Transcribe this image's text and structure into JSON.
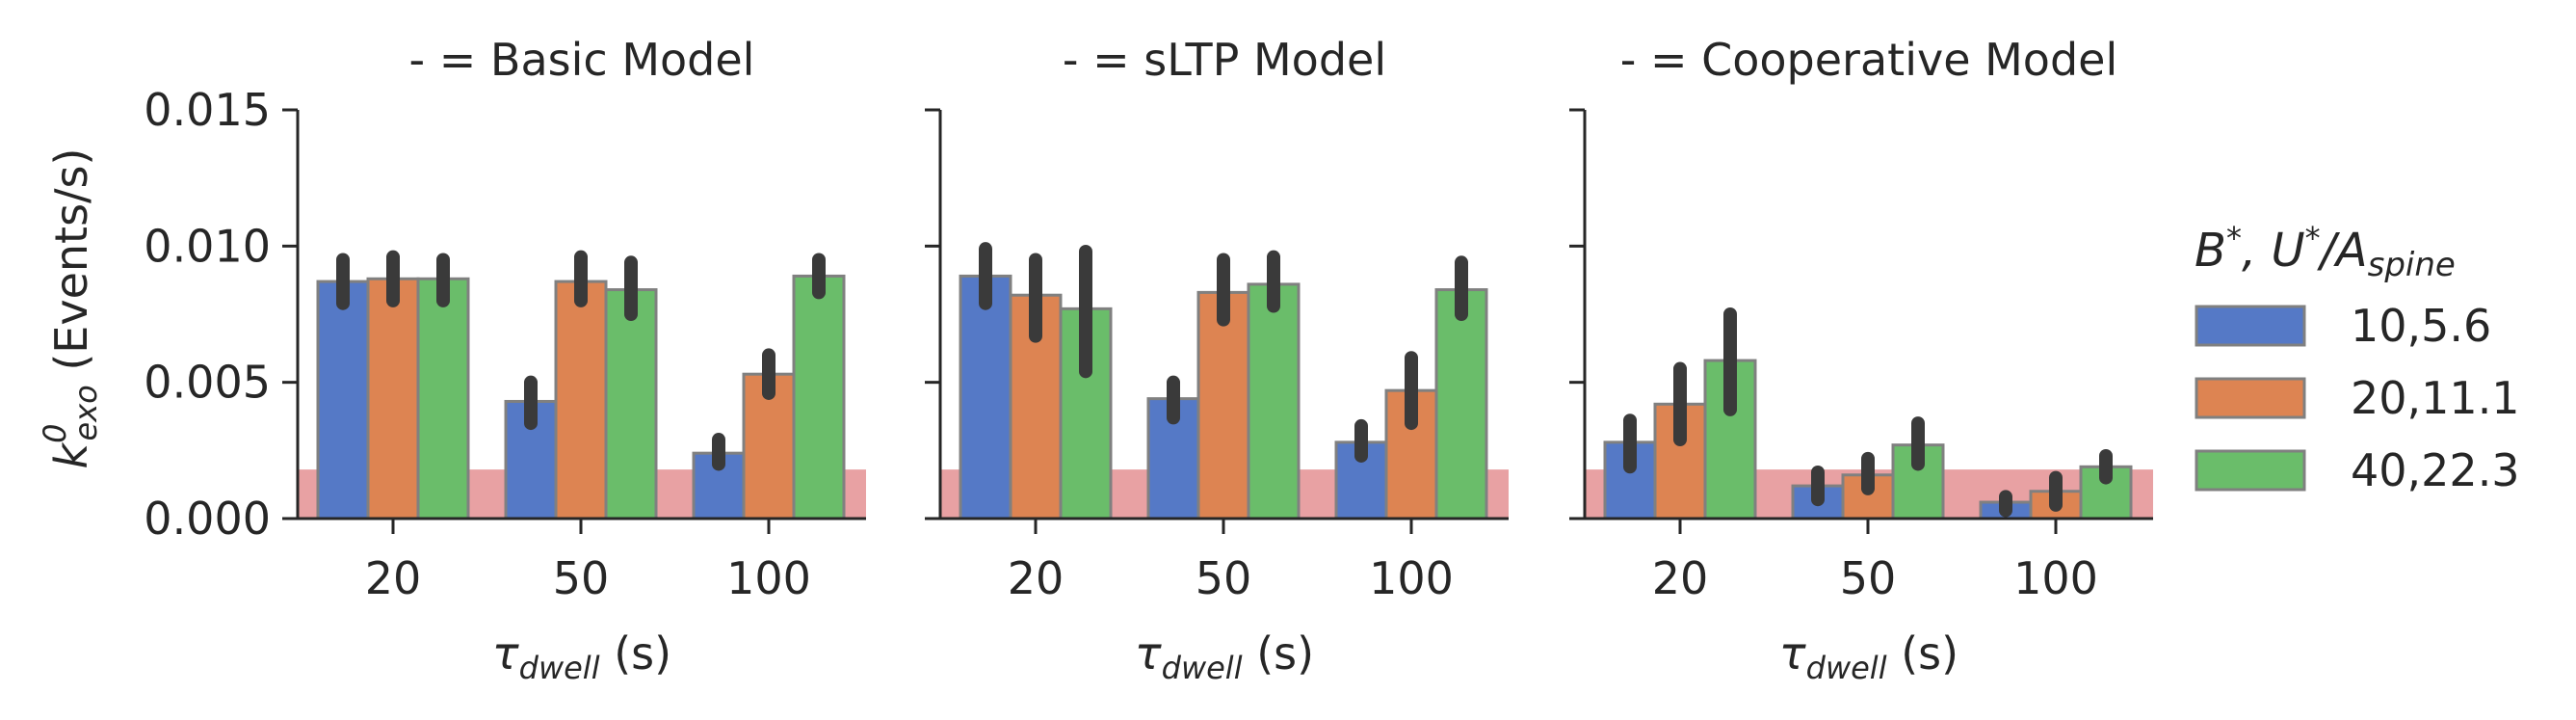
{
  "chart_data": {
    "type": "bar",
    "legend": {
      "title": "B*, U*/A_spine",
      "placement": "right",
      "entries": [
        "10,5.6",
        "20,11.1",
        "40,22.3"
      ]
    },
    "colors": {
      "series": [
        "#5579c6",
        "#dd8452",
        "#6abd6a"
      ],
      "bar_edge": "#808080",
      "error_bar": "#3a3a3a",
      "reference_band": "#e8a1a3",
      "axis": "#262626"
    },
    "ylabel": "k⁰exo (Events/s)",
    "ylabel_parts": {
      "base": "k",
      "sup": "0",
      "sub": "exo",
      "unit": " (Events/s)"
    },
    "xlabel": "τdwell (s)",
    "xlabel_parts": {
      "base": "τ",
      "sub": "dwell",
      "unit": " (s)"
    },
    "ylim": [
      0,
      0.015
    ],
    "yticks": [
      "0.000",
      "0.005",
      "0.010",
      "0.015"
    ],
    "ytick_values": [
      0,
      0.005,
      0.01,
      0.015
    ],
    "categories": [
      "20",
      "50",
      "100"
    ],
    "grid": false,
    "reference_band": [
      0,
      0.0018
    ],
    "panels": [
      {
        "title": "- = Basic Model",
        "series": [
          {
            "name": "10,5.6",
            "values": [
              0.0087,
              0.0043,
              0.0024
            ],
            "err_low": [
              0.0079,
              0.0035,
              0.002
            ],
            "err_high": [
              0.0095,
              0.005,
              0.0029
            ]
          },
          {
            "name": "20,11.1",
            "values": [
              0.0088,
              0.0087,
              0.0053
            ],
            "err_low": [
              0.008,
              0.008,
              0.0046
            ],
            "err_high": [
              0.0096,
              0.0096,
              0.006
            ]
          },
          {
            "name": "40,22.3",
            "values": [
              0.0088,
              0.0084,
              0.0089
            ],
            "err_low": [
              0.008,
              0.0075,
              0.0083
            ],
            "err_high": [
              0.0095,
              0.0094,
              0.0095
            ]
          }
        ]
      },
      {
        "title": "- = sLTP Model",
        "series": [
          {
            "name": "10,5.6",
            "values": [
              0.0089,
              0.0044,
              0.0028
            ],
            "err_low": [
              0.0079,
              0.0037,
              0.0023
            ],
            "err_high": [
              0.0099,
              0.005,
              0.0034
            ]
          },
          {
            "name": "20,11.1",
            "values": [
              0.0082,
              0.0083,
              0.0047
            ],
            "err_low": [
              0.0067,
              0.0073,
              0.0035
            ],
            "err_high": [
              0.0095,
              0.0095,
              0.0059
            ]
          },
          {
            "name": "40,22.3",
            "values": [
              0.0077,
              0.0086,
              0.0084
            ],
            "err_low": [
              0.0054,
              0.0078,
              0.0075
            ],
            "err_high": [
              0.0098,
              0.0096,
              0.0094
            ]
          }
        ]
      },
      {
        "title": "- = Cooperative Model",
        "series": [
          {
            "name": "10,5.6",
            "values": [
              0.0028,
              0.0012,
              0.0006
            ],
            "err_low": [
              0.0019,
              0.0007,
              0.0003
            ],
            "err_high": [
              0.0036,
              0.0017,
              0.0008
            ]
          },
          {
            "name": "20,11.1",
            "values": [
              0.0042,
              0.0016,
              0.001
            ],
            "err_low": [
              0.0029,
              0.0011,
              0.0005
            ],
            "err_high": [
              0.0055,
              0.0022,
              0.0015
            ]
          },
          {
            "name": "40,22.3",
            "values": [
              0.0058,
              0.0027,
              0.0019
            ],
            "err_low": [
              0.004,
              0.002,
              0.0015
            ],
            "err_high": [
              0.0075,
              0.0035,
              0.0023
            ]
          }
        ]
      }
    ]
  }
}
